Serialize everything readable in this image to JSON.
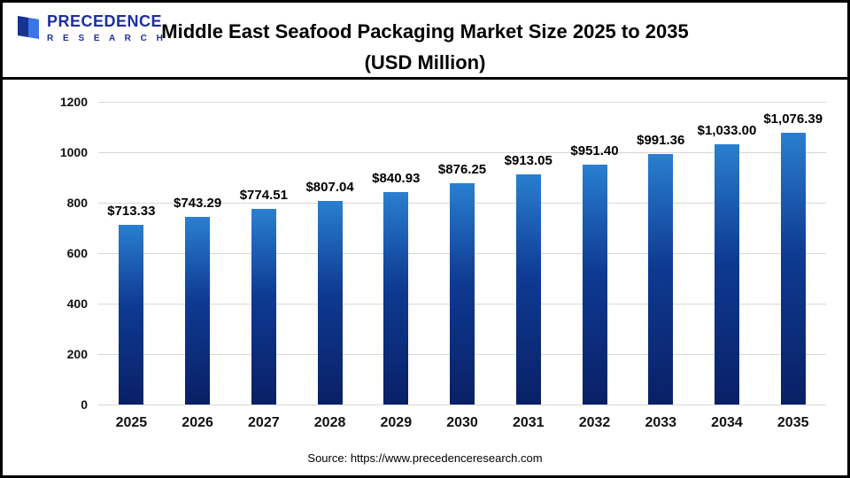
{
  "logo": {
    "line1": "PRECEDENCE",
    "line2": "R E S E A R C H"
  },
  "header": {
    "title_line1": "Middle East Seafood Packaging Market Size 2025 to 2035",
    "title_line2": "(USD Million)"
  },
  "chart_data": {
    "type": "bar",
    "title": "Middle East Seafood Packaging Market Size 2025 to 2035 (USD Million)",
    "categories": [
      "2025",
      "2026",
      "2027",
      "2028",
      "2029",
      "2030",
      "2031",
      "2032",
      "2033",
      "2034",
      "2035"
    ],
    "values": [
      713.33,
      743.29,
      774.51,
      807.04,
      840.93,
      876.25,
      913.05,
      951.4,
      991.36,
      1033.0,
      1076.39
    ],
    "value_labels": [
      "$713.33",
      "$743.29",
      "$774.51",
      "$807.04",
      "$840.93",
      "$876.25",
      "$913.05",
      "$951.40",
      "$991.36",
      "$1,033.00",
      "$1,076.39"
    ],
    "xlabel": "",
    "ylabel": "",
    "ylim": [
      0,
      1200
    ],
    "yticks": [
      0,
      200,
      400,
      600,
      800,
      1000,
      1200
    ],
    "grid": true,
    "legend": "none",
    "bar_gradient": [
      "#2a7fd0",
      "#0e3a92",
      "#0a2066"
    ]
  },
  "footer": {
    "source": "Source: https://www.precedenceresearch.com"
  }
}
